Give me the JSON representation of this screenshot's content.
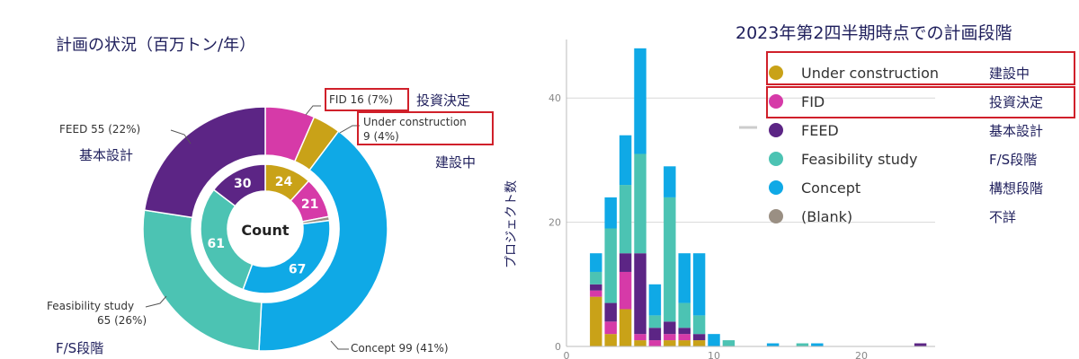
{
  "left_title": "計画の状況（百万トン/年）",
  "right_title": "2023年第2四半期時点での計画段階",
  "y_axis_label": "プロジェクト数",
  "colors": {
    "under_construction": "#C9A218",
    "fid": "#D63AA8",
    "feed": "#5C2585",
    "feasibility": "#4CC3B3",
    "concept": "#0FA9E6",
    "blank": "#9A8F83",
    "red_box": "#D0202A"
  },
  "chart_data": [
    {
      "type": "pie",
      "center_label": "Count",
      "outer_ring": {
        "segments": [
          {
            "key": "fid",
            "value": 16,
            "label": "FID 16 (7%)",
            "jp_label": "投資決定"
          },
          {
            "key": "under_construction",
            "value": 9,
            "label_line1": "Under construction",
            "label_line2": "9 (4%)",
            "jp_label": "建設中"
          },
          {
            "key": "concept",
            "value": 99,
            "label": "Concept 99 (41%)"
          },
          {
            "key": "feasibility",
            "value": 65,
            "label_line1": "Feasibility study",
            "label_line2": "65 (26%)",
            "jp_label": "F/S段階"
          },
          {
            "key": "feed",
            "value": 55,
            "label": "FEED 55 (22%)",
            "jp_label": "基本設計"
          }
        ]
      },
      "inner_ring": {
        "segments": [
          {
            "key": "under_construction",
            "value": 24,
            "label": "24"
          },
          {
            "key": "fid",
            "value": 21,
            "label": "21"
          },
          {
            "key": "blank",
            "value": 2,
            "label": ""
          },
          {
            "key": "concept",
            "value": 67,
            "label": "67"
          },
          {
            "key": "feasibility",
            "value": 61,
            "label": "61"
          },
          {
            "key": "feed",
            "value": 30,
            "label": "30"
          }
        ]
      }
    },
    {
      "type": "bar",
      "stacked": true,
      "y_ticks": [
        "0",
        "20",
        "40"
      ],
      "x_ticks": [
        "0",
        "10",
        "20"
      ],
      "ylim": [
        0,
        50
      ],
      "xlim": [
        0,
        25
      ],
      "stack_order": [
        "under_construction",
        "fid",
        "feed",
        "feasibility",
        "concept"
      ],
      "bars": [
        {
          "x": 2,
          "under_construction": 8,
          "fid": 1,
          "feed": 1,
          "feasibility": 2,
          "concept": 3
        },
        {
          "x": 3,
          "under_construction": 2,
          "fid": 2,
          "feed": 3,
          "feasibility": 12,
          "concept": 5
        },
        {
          "x": 4,
          "under_construction": 6,
          "fid": 6,
          "feed": 3,
          "feasibility": 11,
          "concept": 8
        },
        {
          "x": 5,
          "under_construction": 1,
          "fid": 1,
          "feed": 13,
          "feasibility": 16,
          "concept": 17
        },
        {
          "x": 6,
          "under_construction": 0,
          "fid": 1,
          "feed": 2,
          "feasibility": 2,
          "concept": 5
        },
        {
          "x": 7,
          "under_construction": 1,
          "fid": 1,
          "feed": 2,
          "feasibility": 20,
          "concept": 5
        },
        {
          "x": 8,
          "under_construction": 1,
          "fid": 1,
          "feed": 1,
          "feasibility": 4,
          "concept": 8
        },
        {
          "x": 9,
          "under_construction": 1,
          "fid": 0,
          "feed": 1,
          "feasibility": 3,
          "concept": 10
        },
        {
          "x": 10,
          "under_construction": 0,
          "fid": 0,
          "feed": 0,
          "feasibility": 0,
          "concept": 2
        },
        {
          "x": 11,
          "under_construction": 0,
          "fid": 0,
          "feed": 0,
          "feasibility": 1,
          "concept": 0
        },
        {
          "x": 14,
          "under_construction": 0,
          "fid": 0,
          "feed": 0,
          "feasibility": 0,
          "concept": 0.5
        },
        {
          "x": 16,
          "under_construction": 0,
          "fid": 0,
          "feed": 0,
          "feasibility": 0.5,
          "concept": 0
        },
        {
          "x": 17,
          "under_construction": 0,
          "fid": 0,
          "feed": 0,
          "feasibility": 0,
          "concept": 0.5
        },
        {
          "x": 24,
          "under_construction": 0,
          "fid": 0,
          "feed": 0.5,
          "feasibility": 0,
          "concept": 0
        }
      ]
    }
  ],
  "legend": [
    {
      "key": "under_construction",
      "en": "Under construction",
      "jp": "建設中",
      "highlighted": true
    },
    {
      "key": "fid",
      "en": "FID",
      "jp": "投資決定",
      "highlighted": true
    },
    {
      "key": "feed",
      "en": "FEED",
      "jp": "基本設計",
      "highlighted": false
    },
    {
      "key": "feasibility",
      "en": "Feasibility study",
      "jp": "F/S段階",
      "highlighted": false
    },
    {
      "key": "concept",
      "en": "Concept",
      "jp": "構想段階",
      "highlighted": false
    },
    {
      "key": "blank",
      "en": "(Blank)",
      "jp": "不詳",
      "highlighted": false
    }
  ]
}
